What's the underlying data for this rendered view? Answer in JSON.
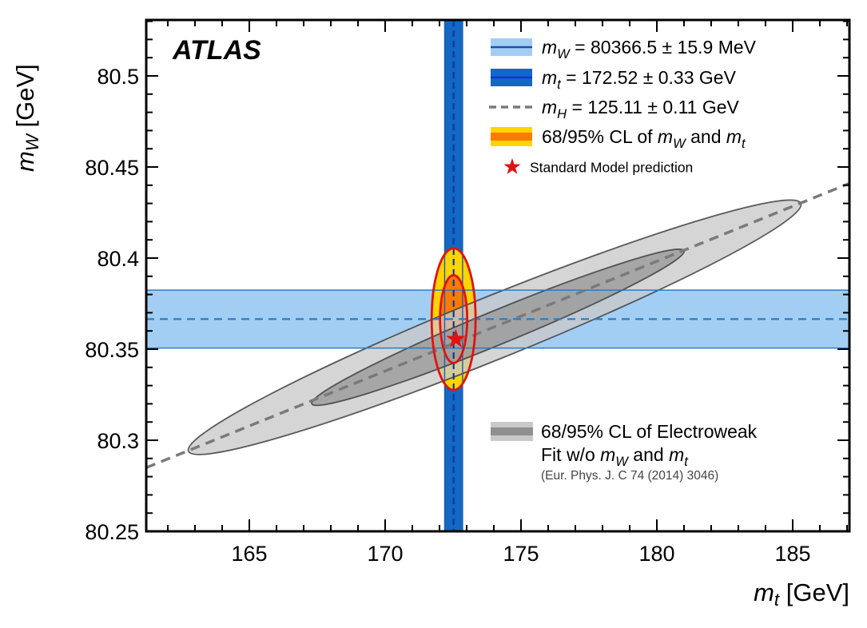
{
  "title": "ATLAS",
  "axes": {
    "x": {
      "title_segments": [
        {
          "t": "m",
          "i": 1
        },
        {
          "t": "t",
          "sub": 1,
          "i": 1
        },
        {
          "t": " [GeV]"
        }
      ],
      "min": 161.21,
      "max": 187.09,
      "major_ticks": [
        165,
        170,
        175,
        180,
        185
      ],
      "tick_labels": [
        "165",
        "170",
        "175",
        "180",
        "185"
      ],
      "minor_step": 1
    },
    "y": {
      "title_segments": [
        {
          "t": "m",
          "i": 1
        },
        {
          "t": "W",
          "sub": 1,
          "i": 1
        },
        {
          "t": " [GeV]"
        }
      ],
      "min": 80.25,
      "max": 80.531,
      "major_ticks": [
        80.25,
        80.3,
        80.35,
        80.4,
        80.45,
        80.5
      ],
      "tick_labels": [
        "80.25",
        "80.3",
        "80.35",
        "80.4",
        "80.45",
        "80.5"
      ],
      "minor_step": 0.01
    }
  },
  "chart_data": {
    "type": "confidence-region-plot",
    "title": "ATLAS mW vs mt measurement compatibility with Standard Model",
    "xlabel": "m_t [GeV]",
    "ylabel": "m_W [GeV]",
    "xlim": [
      161.21,
      187.09
    ],
    "ylim": [
      80.25,
      80.531
    ],
    "measurements": {
      "mw": {
        "value": 80366.5,
        "error": 15.9,
        "unit": "MeV"
      },
      "mt": {
        "value": 172.52,
        "error": 0.33,
        "unit": "GeV"
      },
      "mh": {
        "value": 125.11,
        "error": 0.11,
        "unit": "GeV"
      }
    },
    "bands": {
      "mw_horizontal": {
        "center_gev": 80.3665,
        "half_width_gev": 0.0159
      },
      "mt_vertical": {
        "center_gev": 172.52,
        "half_width_gev": 0.33
      }
    },
    "red_ellipses": {
      "center": {
        "mt": 172.52,
        "mw": 80.3665
      },
      "cl68": {
        "rx_gev": 0.5,
        "ry_gev": 0.0241
      },
      "cl95": {
        "rx_gev": 0.808,
        "ry_gev": 0.0389
      }
    },
    "gray_ellipses": {
      "cl95": {
        "tip1": {
          "mt": 162.76,
          "mw": 80.294
        },
        "tip2": {
          "mt": 185.3,
          "mw": 80.43
        },
        "half_height_gev": 0.0185
      },
      "cl68": {
        "tip1": {
          "mt": 167.3,
          "mw": 80.32
        },
        "tip2": {
          "mt": 181.0,
          "mw": 80.404
        },
        "half_height_gev": 0.01
      }
    },
    "mh_line": {
      "p1": {
        "mt": 161.21,
        "mw": 80.285
      },
      "p2": {
        "mt": 187.09,
        "mw": 80.441
      }
    },
    "sm_prediction": {
      "mt": 172.6,
      "mw": 80.3555
    }
  },
  "legend": {
    "entries": [
      {
        "marker": "band",
        "fill": "#A3CEF3",
        "line": "#1d4fae",
        "segments": [
          {
            "t": "m",
            "i": 1
          },
          {
            "t": "W",
            "sub": 1,
            "i": 1
          },
          {
            "t": " = 80366.5 ± 15.9 MeV"
          }
        ]
      },
      {
        "marker": "band",
        "fill": "#1268C4",
        "line": "#0d35e0",
        "segments": [
          {
            "t": "m",
            "i": 1
          },
          {
            "t": "t",
            "sub": 1,
            "i": 1
          },
          {
            "t": " = 172.52 ± 0.33 GeV"
          }
        ]
      },
      {
        "marker": "dash",
        "line": "#7a7a7a",
        "segments": [
          {
            "t": "m",
            "i": 1
          },
          {
            "t": "H",
            "sub": 1,
            "i": 1
          },
          {
            "t": " = 125.11 ± 0.11 GeV"
          }
        ]
      },
      {
        "marker": "stripe",
        "fill": "#FFD400",
        "line": "#FF7A00",
        "segments": [
          {
            "t": "68/95% CL of "
          },
          {
            "t": "m",
            "i": 1
          },
          {
            "t": "W",
            "sub": 1,
            "i": 1
          },
          {
            "t": " and "
          },
          {
            "t": "m",
            "i": 1
          },
          {
            "t": "t",
            "sub": 1,
            "i": 1
          }
        ]
      },
      {
        "marker": "star",
        "line": "#E01212",
        "text_color": "#E01212",
        "small": true,
        "segments": [
          {
            "t": "Standard Model prediction"
          }
        ]
      }
    ]
  },
  "legend_ew": {
    "marker": {
      "fill": "#C9C9C9",
      "stripe": "#8f8f8f"
    },
    "lines": [
      {
        "size": 23,
        "segments": [
          {
            "t": "68/95% CL of Electroweak"
          }
        ]
      },
      {
        "size": 23,
        "segments": [
          {
            "t": "Fit w/o "
          },
          {
            "t": "m",
            "i": 1
          },
          {
            "t": "W",
            "sub": 1,
            "i": 1
          },
          {
            "t": " and "
          },
          {
            "t": "m",
            "i": 1
          },
          {
            "t": "t",
            "sub": 1,
            "i": 1
          }
        ]
      },
      {
        "size": 15.5,
        "cite": true,
        "segments": [
          {
            "t": "(Eur. Phys. J. C 74 (2014) 3046)"
          }
        ]
      }
    ]
  },
  "colors": {
    "mw_band_fill": "#A3CEF3",
    "mw_band_line": "#2b7cc4",
    "mw_dash": "#2b7cc4",
    "mt_band_fill": "#1268C4",
    "mt_band_line": "#1b5fb0",
    "mt_dash": "#0a3a96",
    "mh_dash": "#7a7a7a",
    "gray95_fill": "#C9C9C9",
    "gray68_fill": "#989898",
    "gray_stroke": "#3f3f3f",
    "red": "#E01212",
    "yellow": "#FFD400",
    "orange": "#FF7A00",
    "frame": "#000000"
  }
}
